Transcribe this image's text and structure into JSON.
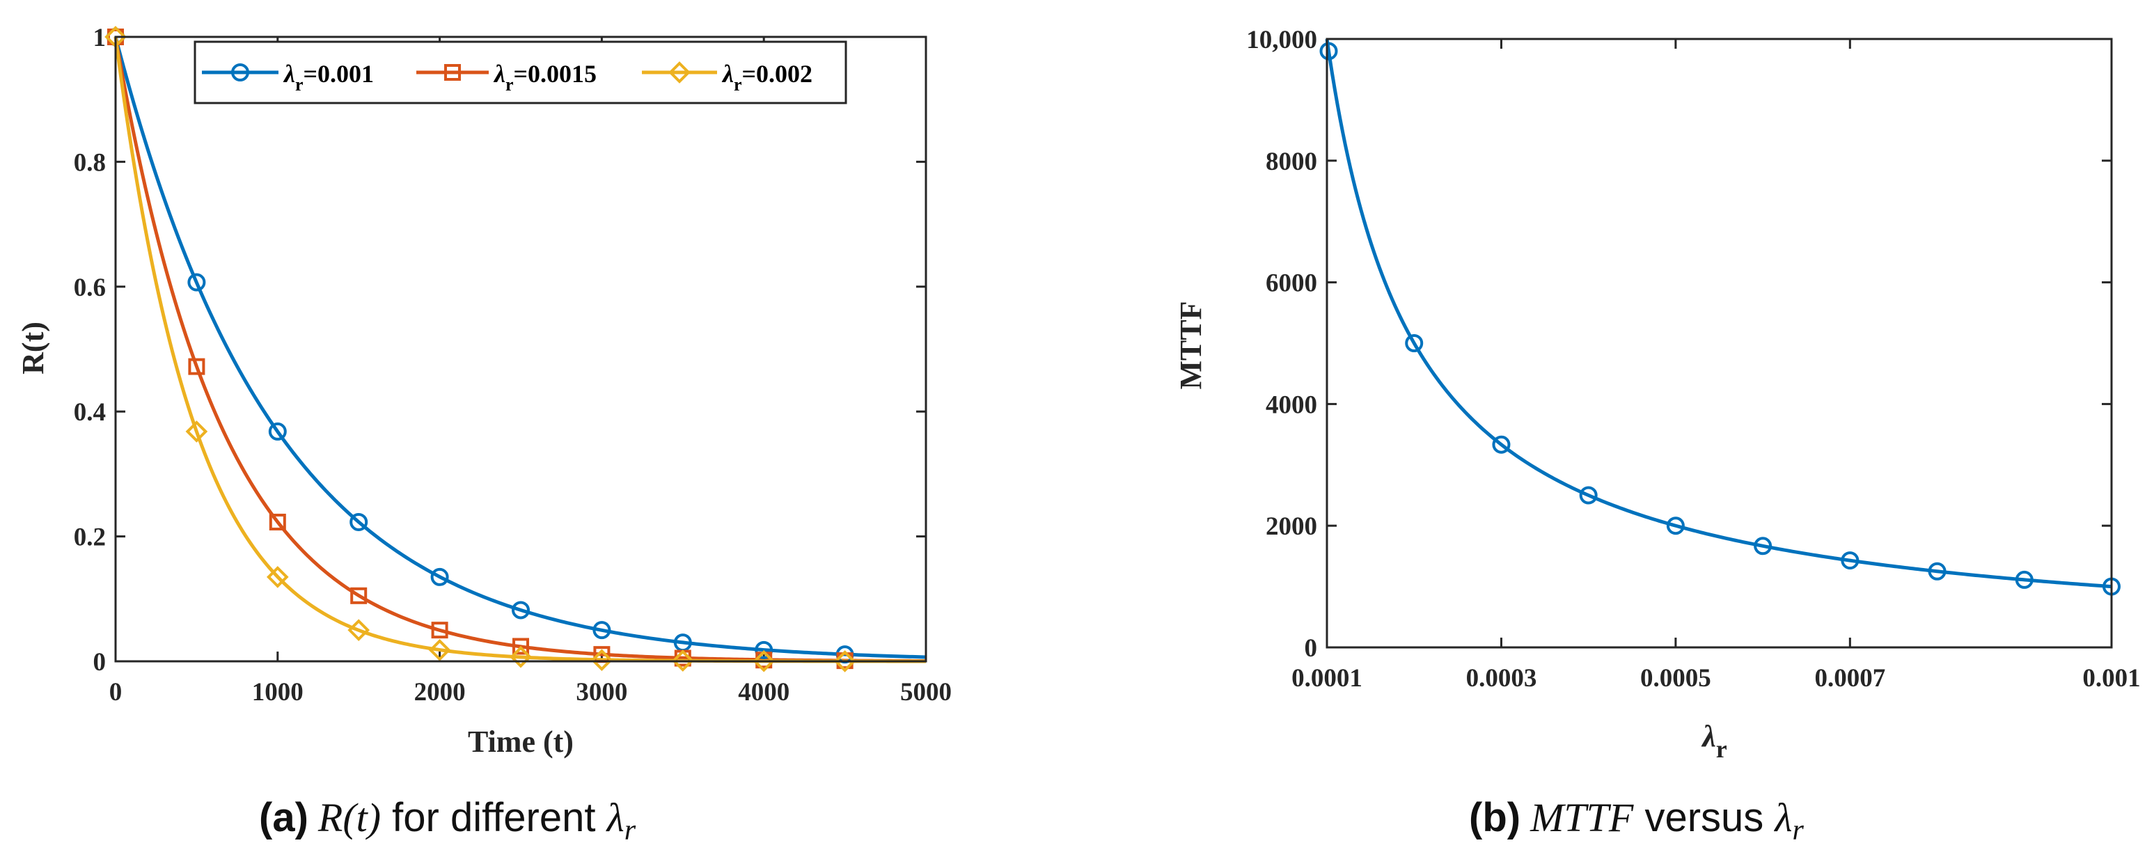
{
  "colors": {
    "series_blue": "#0072BD",
    "series_orange": "#D95319",
    "series_yellow": "#EDB120",
    "axis": "#262626"
  },
  "chart_data": [
    {
      "type": "line",
      "id": "a",
      "xlabel": "Time (t)",
      "ylabel": "R(t)",
      "xlim": [
        0,
        5000
      ],
      "ylim": [
        0,
        1
      ],
      "xticks": [
        "0",
        "1000",
        "2000",
        "3000",
        "4000",
        "5000"
      ],
      "yticks": [
        "0",
        "0.2",
        "0.4",
        "0.6",
        "0.8",
        "1"
      ],
      "xtick_values": [
        0,
        1000,
        2000,
        3000,
        4000,
        5000
      ],
      "ytick_values": [
        0,
        0.2,
        0.4,
        0.6,
        0.8,
        1
      ],
      "legend_position": "top",
      "series": [
        {
          "name": "λr=0.001",
          "legend_symbol": "λ",
          "legend_sub": "r",
          "legend_value": "=0.001",
          "marker": "circle",
          "color_key": "series_blue",
          "x": [
            0,
            500,
            1000,
            1500,
            2000,
            2500,
            3000,
            3500,
            4000,
            4500
          ],
          "values": [
            1.0,
            0.607,
            0.368,
            0.223,
            0.135,
            0.082,
            0.05,
            0.03,
            0.018,
            0.011
          ],
          "curve": "exp(-0.001 t)"
        },
        {
          "name": "λr=0.0015",
          "legend_symbol": "λ",
          "legend_sub": "r",
          "legend_value": "=0.0015",
          "marker": "square",
          "color_key": "series_orange",
          "x": [
            0,
            500,
            1000,
            1500,
            2000,
            2500,
            3000,
            3500,
            4000,
            4500
          ],
          "values": [
            1.0,
            0.472,
            0.223,
            0.105,
            0.05,
            0.024,
            0.011,
            0.005,
            0.002,
            0.001
          ],
          "curve": "exp(-0.0015 t)"
        },
        {
          "name": "λr=0.002",
          "legend_symbol": "λ",
          "legend_sub": "r",
          "legend_value": "=0.002",
          "marker": "diamond",
          "color_key": "series_yellow",
          "x": [
            0,
            500,
            1000,
            1500,
            2000,
            2500,
            3000,
            3500,
            4000,
            4500
          ],
          "values": [
            1.0,
            0.368,
            0.135,
            0.05,
            0.018,
            0.007,
            0.002,
            0.001,
            0.0003,
            0.0001
          ],
          "curve": "exp(-0.002 t)"
        }
      ]
    },
    {
      "type": "line",
      "id": "b",
      "xlabel_symbol": "λ",
      "xlabel_sub": "r",
      "ylabel": "MTTF",
      "xlim": [
        0.0001,
        0.001
      ],
      "ylim": [
        0,
        10000
      ],
      "xticks": [
        "0.0001",
        "0.0003",
        "0.0005",
        "0.0007",
        "0.001"
      ],
      "xtick_values": [
        0.0001,
        0.0003,
        0.0005,
        0.0007,
        0.001
      ],
      "yticks": [
        "0",
        "2000",
        "4000",
        "6000",
        "8000",
        "10,000"
      ],
      "ytick_values": [
        0,
        2000,
        4000,
        6000,
        8000,
        10000
      ],
      "series": [
        {
          "name": "MTTF",
          "marker": "circle",
          "color_key": "series_blue",
          "x": [
            0.000102,
            0.0002,
            0.0003,
            0.0004,
            0.0005,
            0.0006,
            0.0007,
            0.0008,
            0.0009,
            0.001
          ],
          "values": [
            9800,
            5000,
            3333,
            2500,
            2000,
            1667,
            1429,
            1250,
            1111,
            1000
          ],
          "curve": "1/λr"
        }
      ]
    }
  ],
  "captions": [
    {
      "label": "(a)",
      "math_start": "R(t)",
      "text": " for different ",
      "math_symbol": "λ",
      "math_sub": "r"
    },
    {
      "label": "(b)",
      "math_start": "MTTF",
      "text": " versus ",
      "math_symbol": "λ",
      "math_sub": "r"
    }
  ]
}
